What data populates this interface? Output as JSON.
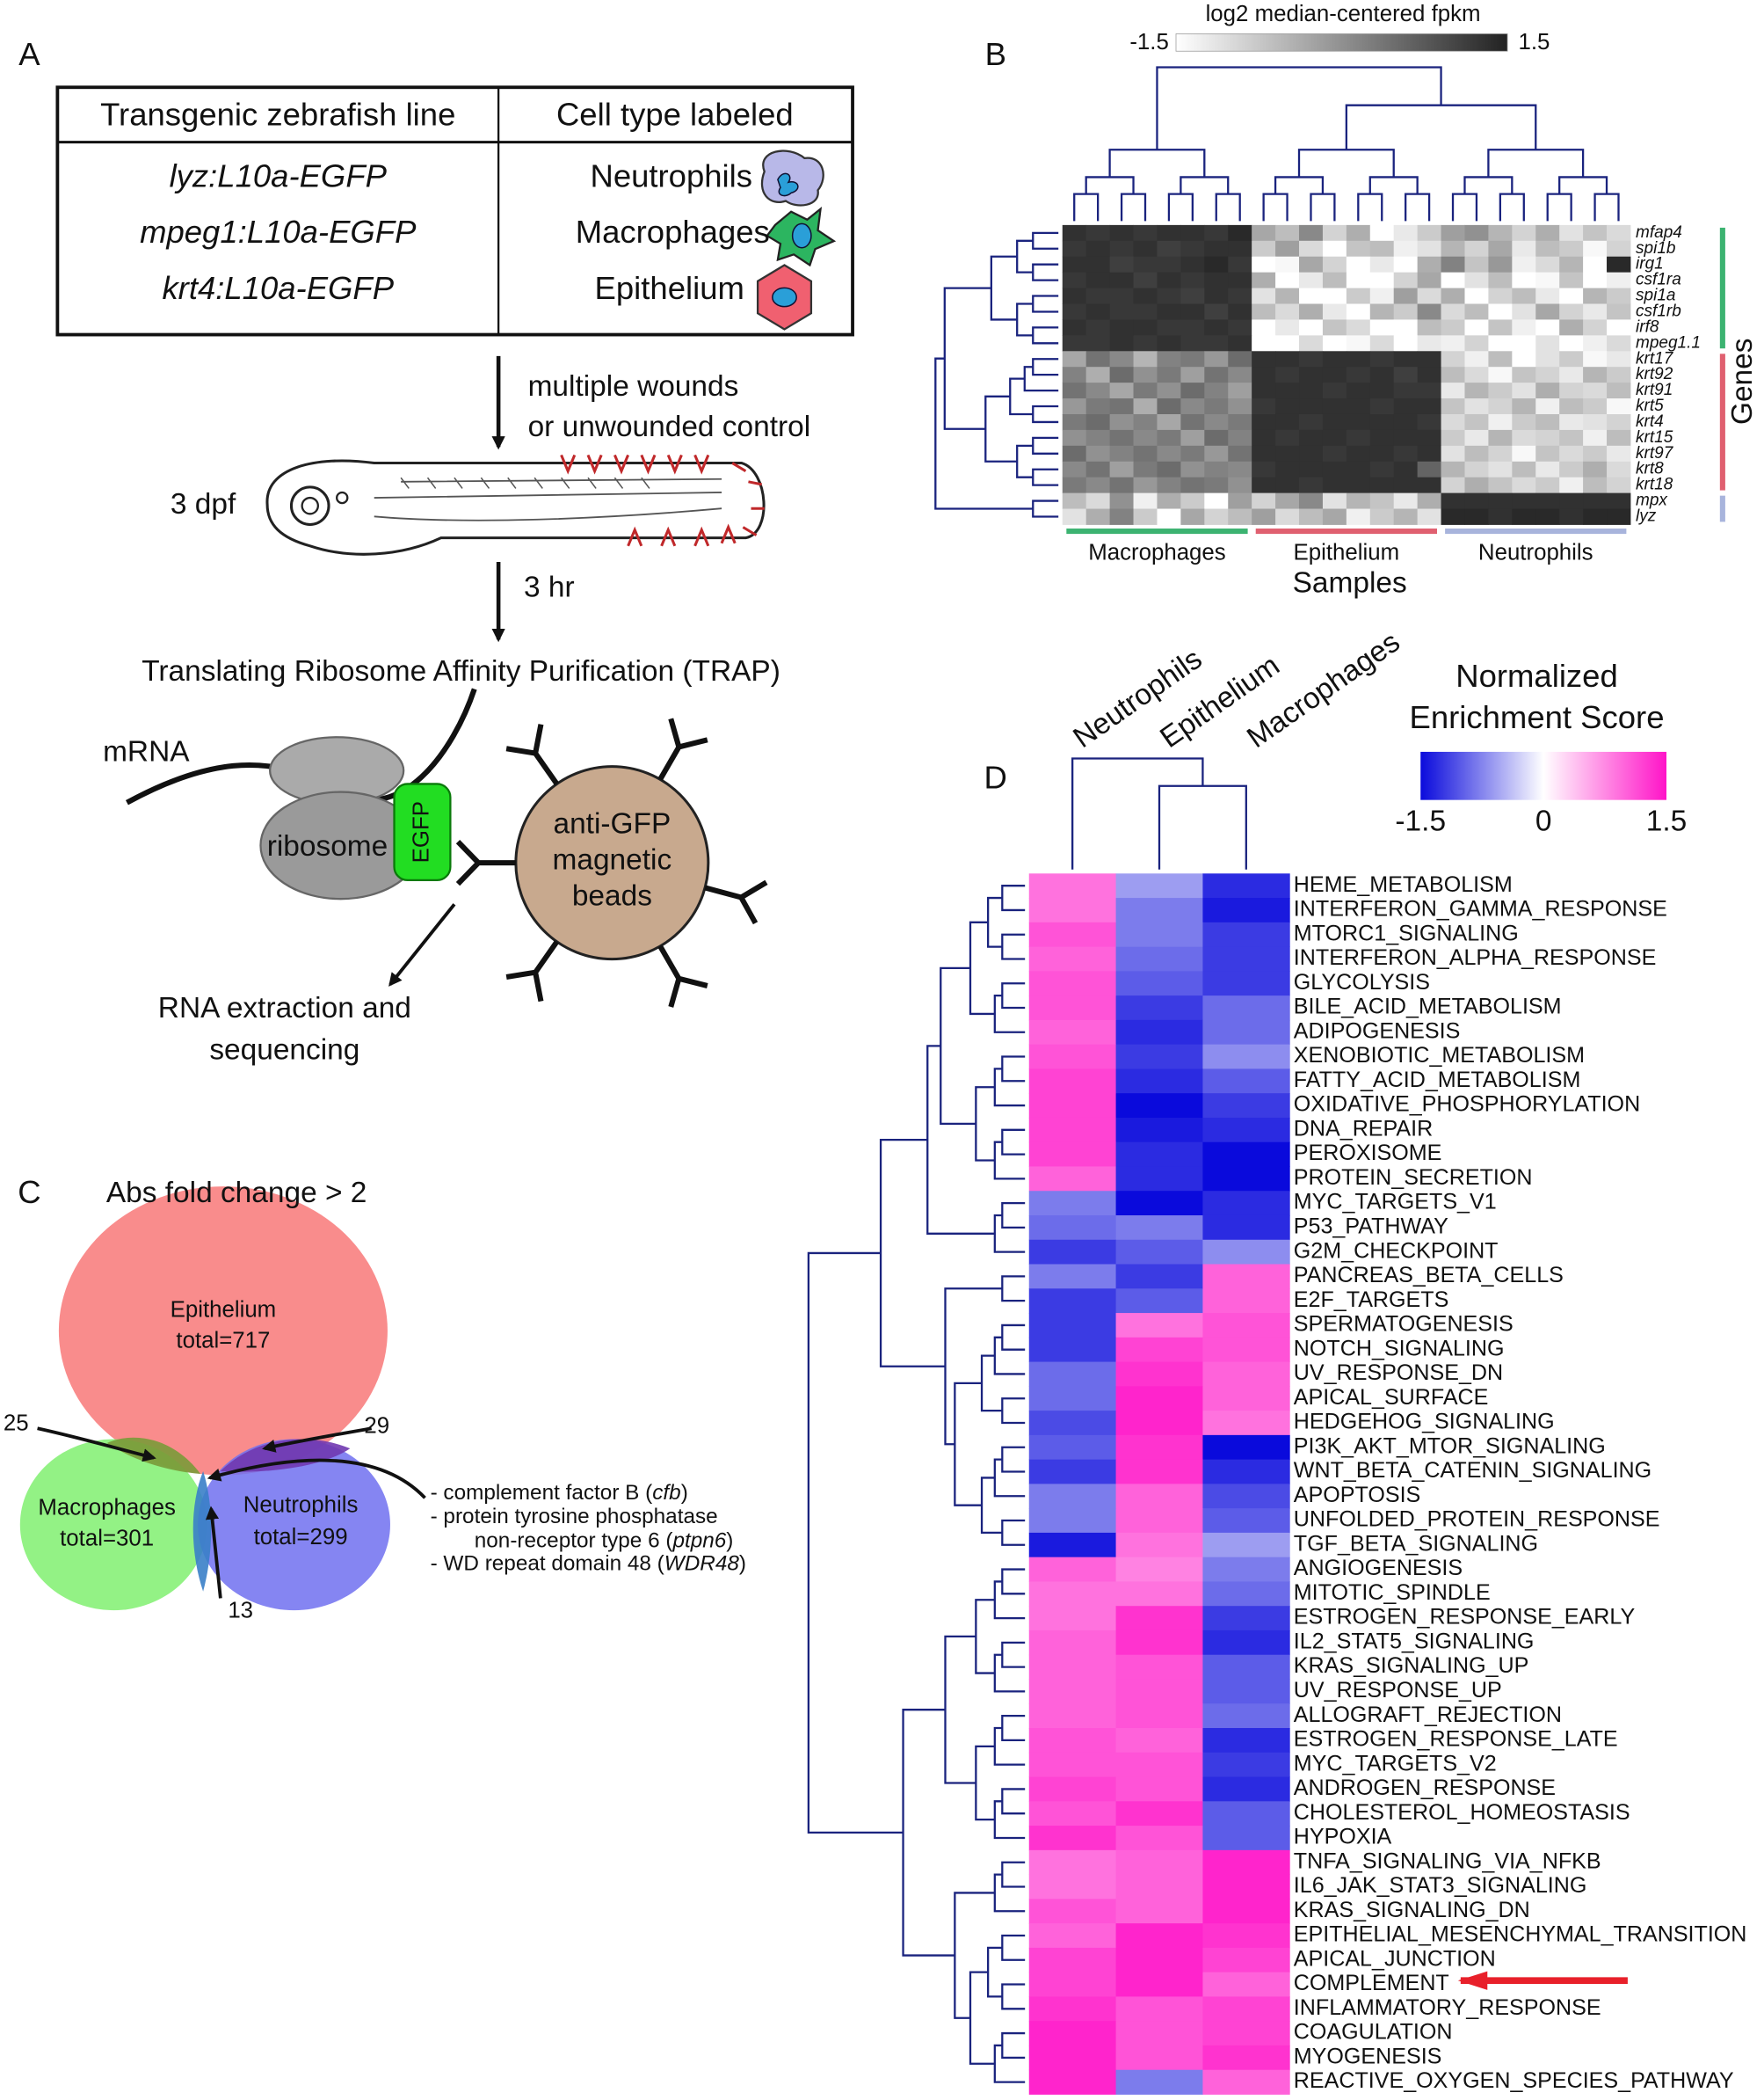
{
  "panel_a": {
    "label": "A",
    "table": {
      "header": [
        "Transgenic zebrafish line",
        "Cell type labeled"
      ],
      "rows": [
        [
          "lyz:L10a-EGFP",
          "Neutrophils"
        ],
        [
          "mpeg1:L10a-EGFP",
          "Macrophages"
        ],
        [
          "krt4:L10a-EGFP",
          "Epithelium"
        ]
      ]
    },
    "treatment": [
      "multiple wounds",
      "or unwounded control"
    ],
    "age": "3 dpf",
    "time": "3 hr",
    "method": "Translating Ribosome Affinity Purification (TRAP)",
    "mrna": "mRNA",
    "ribosome": "ribosome",
    "tag": "EGFP",
    "beads": [
      "anti-GFP",
      "magnetic",
      "beads"
    ],
    "output": [
      "RNA extraction and",
      "sequencing"
    ]
  },
  "panel_b": {
    "label": "B",
    "title": "log2 median-centered fpkm",
    "scale": [
      -1.5,
      1.5
    ],
    "genes": [
      "mfap4",
      "spi1b",
      "irg1",
      "csf1ra",
      "spi1a",
      "csf1rb",
      "irf8",
      "mpeg1.1",
      "krt17",
      "krt92",
      "krt91",
      "krt5",
      "krt4",
      "krt15",
      "krt97",
      "krt8",
      "krt18",
      "mpx",
      "lyz"
    ],
    "gene_group_colors": [
      "#3cb371",
      "#e06070",
      "#a8b4dc"
    ],
    "sample_groups": [
      {
        "name": "Macrophages",
        "color": "#3cb371"
      },
      {
        "name": "Epithelium",
        "color": "#e06070"
      },
      {
        "name": "Neutrophils",
        "color": "#a8b4dc"
      }
    ],
    "xlabel": "Samples",
    "ylabel": "Genes",
    "values": [
      [
        1.3,
        1.2,
        1.3,
        1.2,
        1.3,
        1.3,
        1.2,
        1.4,
        -0.3,
        -0.6,
        0.1,
        -0.9,
        -0.4,
        -1.5,
        -1.2,
        -0.8,
        -0.2,
        0.0,
        -0.5,
        -0.9,
        -0.4,
        -1.1,
        -0.7,
        -1.0
      ],
      [
        1.2,
        1.3,
        1.2,
        1.3,
        1.1,
        1.2,
        1.3,
        1.3,
        -0.8,
        -0.2,
        -1.0,
        -1.5,
        -0.7,
        -0.6,
        -1.3,
        -1.1,
        -0.5,
        -0.9,
        -0.3,
        -1.2,
        -0.6,
        -0.8,
        -1.4,
        -0.9
      ],
      [
        1.3,
        1.3,
        1.1,
        1.2,
        1.2,
        1.3,
        1.4,
        1.2,
        -1.5,
        -1.4,
        -0.3,
        -0.9,
        -1.5,
        -1.2,
        -1.5,
        -0.4,
        0.2,
        -0.7,
        -0.1,
        -1.3,
        -1.0,
        -0.5,
        -1.5,
        1.4
      ],
      [
        1.2,
        1.3,
        1.3,
        1.1,
        1.3,
        1.2,
        1.3,
        1.3,
        -0.4,
        -1.5,
        -1.2,
        -0.6,
        -1.5,
        -1.5,
        -0.9,
        -0.3,
        -1.5,
        -1.1,
        -0.6,
        -1.5,
        -1.4,
        -0.7,
        -1.5,
        -1.3
      ],
      [
        1.3,
        1.2,
        1.2,
        1.3,
        1.2,
        1.1,
        1.3,
        1.2,
        -1.1,
        -0.5,
        -1.5,
        -1.5,
        -0.8,
        -1.3,
        -0.2,
        -1.0,
        -0.4,
        -1.5,
        -0.9,
        -0.6,
        -1.2,
        -1.5,
        -0.5,
        -0.8
      ],
      [
        1.2,
        1.3,
        1.2,
        1.2,
        1.3,
        1.3,
        1.1,
        1.3,
        -0.6,
        -1.0,
        -0.4,
        -1.2,
        -1.5,
        -0.5,
        -0.8,
        0.1,
        -1.0,
        -0.6,
        -1.5,
        -1.1,
        -0.3,
        -0.9,
        -1.2,
        -0.7
      ],
      [
        1.3,
        1.2,
        1.3,
        1.3,
        1.2,
        1.2,
        1.3,
        1.2,
        -1.5,
        -1.2,
        -1.5,
        -0.7,
        -1.0,
        -1.5,
        -1.5,
        -0.6,
        -0.8,
        -1.5,
        -0.7,
        -1.3,
        -1.5,
        -0.4,
        -0.9,
        -1.5
      ],
      [
        1.2,
        1.2,
        1.3,
        1.2,
        1.3,
        1.2,
        1.2,
        1.3,
        -1.5,
        -1.5,
        -1.0,
        -1.5,
        -1.4,
        -1.0,
        -1.5,
        -1.2,
        -1.3,
        -0.9,
        -1.5,
        -1.5,
        -1.1,
        -1.5,
        -1.3,
        -1.0
      ],
      [
        -0.3,
        0.4,
        0.1,
        -0.5,
        0.2,
        0.3,
        -0.1,
        0.5,
        1.3,
        1.3,
        1.2,
        1.3,
        1.3,
        1.2,
        1.3,
        1.3,
        -0.9,
        -1.3,
        -0.6,
        -1.5,
        -1.1,
        -0.8,
        -1.4,
        -1.2
      ],
      [
        0.2,
        -0.4,
        0.5,
        0.0,
        0.3,
        -0.2,
        0.4,
        0.1,
        1.3,
        1.2,
        1.3,
        1.3,
        1.2,
        1.3,
        1.1,
        1.3,
        -0.6,
        -1.0,
        -1.4,
        -0.7,
        -0.9,
        -1.2,
        -0.5,
        -0.8
      ],
      [
        0.4,
        0.1,
        -0.3,
        0.3,
        0.0,
        0.5,
        0.2,
        -0.2,
        1.3,
        1.3,
        1.3,
        1.2,
        1.3,
        1.3,
        1.2,
        1.2,
        -1.2,
        -0.5,
        -0.8,
        -1.1,
        -0.4,
        -0.9,
        -1.0,
        -0.6
      ],
      [
        -0.1,
        0.3,
        0.4,
        -0.4,
        0.5,
        0.1,
        0.3,
        0.0,
        1.2,
        1.3,
        1.3,
        1.3,
        1.3,
        1.2,
        1.3,
        1.3,
        -0.7,
        -1.1,
        -0.9,
        -0.5,
        -1.3,
        -0.6,
        -0.8,
        -1.4
      ],
      [
        0.3,
        0.5,
        0.0,
        0.2,
        -0.3,
        0.4,
        0.1,
        0.3,
        1.3,
        1.3,
        1.2,
        1.3,
        1.3,
        1.3,
        1.3,
        1.2,
        -1.0,
        -0.7,
        -1.3,
        -0.8,
        -0.6,
        -1.2,
        -1.1,
        -0.9
      ],
      [
        0.0,
        0.2,
        0.4,
        0.1,
        0.3,
        -0.2,
        0.5,
        0.2,
        1.3,
        1.2,
        1.3,
        1.3,
        1.2,
        1.3,
        1.3,
        1.3,
        -0.8,
        -1.2,
        -0.5,
        -1.0,
        -0.9,
        -0.7,
        -1.3,
        -0.6
      ],
      [
        0.5,
        0.0,
        0.2,
        0.4,
        0.1,
        0.3,
        -0.1,
        0.4,
        1.3,
        1.3,
        1.3,
        1.2,
        1.3,
        1.3,
        1.2,
        1.3,
        -1.1,
        -0.6,
        -0.9,
        -1.4,
        -0.7,
        -1.0,
        -0.8,
        -1.2
      ],
      [
        0.1,
        0.4,
        -0.2,
        0.3,
        0.5,
        0.0,
        0.2,
        0.1,
        1.2,
        1.3,
        1.3,
        1.3,
        1.3,
        1.2,
        1.3,
        0.6,
        -0.5,
        -0.9,
        -1.1,
        -0.6,
        -1.2,
        -0.8,
        -0.4,
        -1.0
      ],
      [
        0.3,
        0.1,
        0.4,
        -0.1,
        0.2,
        0.4,
        0.3,
        0.0,
        1.3,
        1.3,
        1.2,
        1.3,
        1.3,
        1.3,
        1.3,
        1.3,
        -0.9,
        -0.4,
        -0.7,
        -1.0,
        -0.8,
        -1.3,
        -0.6,
        -0.9
      ],
      [
        -0.6,
        -1.0,
        0.0,
        -1.3,
        -0.4,
        -0.8,
        -1.5,
        -0.2,
        -0.9,
        -0.3,
        0.1,
        -1.1,
        -0.5,
        -0.7,
        -1.2,
        -0.4,
        1.3,
        1.3,
        1.3,
        1.3,
        1.3,
        1.3,
        1.3,
        1.3
      ],
      [
        -1.1,
        -0.4,
        0.2,
        -0.8,
        -1.5,
        -0.3,
        -0.9,
        -0.6,
        -0.2,
        -1.0,
        -0.6,
        -0.3,
        -1.3,
        -0.8,
        -0.5,
        -1.1,
        1.4,
        1.4,
        1.3,
        1.4,
        1.4,
        1.3,
        1.4,
        1.4
      ]
    ]
  },
  "panel_c": {
    "label": "C",
    "title": "Abs fold change > 2",
    "sets": [
      {
        "name": "Epithelium",
        "total": "total=717",
        "color": "#f87878"
      },
      {
        "name": "Macrophages",
        "total": "total=301",
        "color": "#80f070"
      },
      {
        "name": "Neutrophils",
        "total": "total=299",
        "color": "#7070f0"
      }
    ],
    "overlaps": [
      25,
      29,
      13
    ],
    "shared_genes": [
      [
        "- complement factor B (",
        "cfb",
        ")"
      ],
      [
        "- protein tyrosine phosphatase"
      ],
      [
        "non-receptor type 6 (",
        "ptpn6",
        ")"
      ],
      [
        "- WD repeat domain 48 (",
        "WDR48",
        ")"
      ]
    ]
  },
  "panel_d": {
    "label": "D",
    "legend_title": [
      "Normalized",
      "Enrichment Score"
    ],
    "scale": [
      -1.5,
      0,
      1.5
    ],
    "columns": [
      "Neutrophils",
      "Epithelium",
      "Macrophages"
    ],
    "highlight": "COMPLEMENT",
    "highlight_color": "#e8202a",
    "pathways": [
      "HEME_METABOLISM",
      "INTERFERON_GAMMA_RESPONSE",
      "MTORC1_SIGNALING",
      "INTERFERON_ALPHA_RESPONSE",
      "GLYCOLYSIS",
      "BILE_ACID_METABOLISM",
      "ADIPOGENESIS",
      "XENOBIOTIC_METABOLISM",
      "FATTY_ACID_METABOLISM",
      "OXIDATIVE_PHOSPHORYLATION",
      "DNA_REPAIR",
      "PEROXISOME",
      "PROTEIN_SECRETION",
      "MYC_TARGETS_V1",
      "P53_PATHWAY",
      "G2M_CHECKPOINT",
      "PANCREAS_BETA_CELLS",
      "E2F_TARGETS",
      "SPERMATOGENESIS",
      "NOTCH_SIGNALING",
      "UV_RESPONSE_DN",
      "APICAL_SURFACE",
      "HEDGEHOG_SIGNALING",
      "PI3K_AKT_MTOR_SIGNALING",
      "WNT_BETA_CATENIN_SIGNALING",
      "APOPTOSIS",
      "UNFOLDED_PROTEIN_RESPONSE",
      "TGF_BETA_SIGNALING",
      "ANGIOGENESIS",
      "MITOTIC_SPINDLE",
      "ESTROGEN_RESPONSE_EARLY",
      "IL2_STAT5_SIGNALING",
      "KRAS_SIGNALING_UP",
      "UV_RESPONSE_UP",
      "ALLOGRAFT_REJECTION",
      "ESTROGEN_RESPONSE_LATE",
      "MYC_TARGETS_V2",
      "ANDROGEN_RESPONSE",
      "CHOLESTEROL_HOMEOSTASIS",
      "HYPOXIA",
      "TNFA_SIGNALING_VIA_NFKB",
      "IL6_JAK_STAT3_SIGNALING",
      "KRAS_SIGNALING_DN",
      "EPITHELIAL_MESENCHYMAL_TRANSITION",
      "APICAL_JUNCTION",
      "COMPLEMENT",
      "INFLAMMATORY_RESPONSE",
      "COAGULATION",
      "MYOGENESIS",
      "REACTIVE_OXYGEN_SPECIES_PATHWAY"
    ],
    "values": [
      [
        0.9,
        -0.6,
        -1.3
      ],
      [
        0.9,
        -0.8,
        -1.4
      ],
      [
        1.1,
        -0.8,
        -1.2
      ],
      [
        1.0,
        -0.9,
        -1.2
      ],
      [
        1.1,
        -1.0,
        -1.2
      ],
      [
        1.1,
        -1.2,
        -0.9
      ],
      [
        1.0,
        -1.3,
        -0.9
      ],
      [
        1.1,
        -1.2,
        -0.7
      ],
      [
        1.2,
        -1.3,
        -1.0
      ],
      [
        1.2,
        -1.5,
        -1.2
      ],
      [
        1.2,
        -1.4,
        -1.3
      ],
      [
        1.2,
        -1.3,
        -1.5
      ],
      [
        1.0,
        -1.3,
        -1.5
      ],
      [
        -0.8,
        -1.5,
        -1.3
      ],
      [
        -0.9,
        -0.8,
        -1.3
      ],
      [
        -1.2,
        -1.0,
        -0.7
      ],
      [
        -0.8,
        -1.2,
        1.0
      ],
      [
        -1.2,
        -1.0,
        1.0
      ],
      [
        -1.2,
        0.9,
        1.1
      ],
      [
        -1.2,
        1.2,
        1.1
      ],
      [
        -0.9,
        1.3,
        1.0
      ],
      [
        -0.9,
        1.4,
        1.0
      ],
      [
        -1.1,
        1.4,
        0.9
      ],
      [
        -1.0,
        1.3,
        -1.5
      ],
      [
        -1.2,
        1.3,
        -1.3
      ],
      [
        -0.8,
        1.0,
        -1.1
      ],
      [
        -0.8,
        1.0,
        -1.0
      ],
      [
        -1.4,
        0.9,
        -0.6
      ],
      [
        1.0,
        0.8,
        -0.8
      ],
      [
        0.9,
        0.9,
        -0.9
      ],
      [
        0.9,
        1.3,
        -1.2
      ],
      [
        1.0,
        1.3,
        -1.3
      ],
      [
        1.0,
        1.1,
        -1.0
      ],
      [
        1.0,
        1.1,
        -1.0
      ],
      [
        1.0,
        1.1,
        -0.9
      ],
      [
        1.1,
        1.0,
        -1.3
      ],
      [
        1.1,
        1.1,
        -1.2
      ],
      [
        1.2,
        1.1,
        -1.3
      ],
      [
        1.1,
        1.3,
        -1.0
      ],
      [
        1.3,
        1.1,
        -1.0
      ],
      [
        0.9,
        1.0,
        1.4
      ],
      [
        0.9,
        1.0,
        1.4
      ],
      [
        1.1,
        1.0,
        1.4
      ],
      [
        1.0,
        1.4,
        1.3
      ],
      [
        1.2,
        1.4,
        1.2
      ],
      [
        1.2,
        1.4,
        1.0
      ],
      [
        1.3,
        1.1,
        1.2
      ],
      [
        1.4,
        1.1,
        1.2
      ],
      [
        1.4,
        1.1,
        1.3
      ],
      [
        1.4,
        -0.8,
        1.0
      ]
    ]
  }
}
